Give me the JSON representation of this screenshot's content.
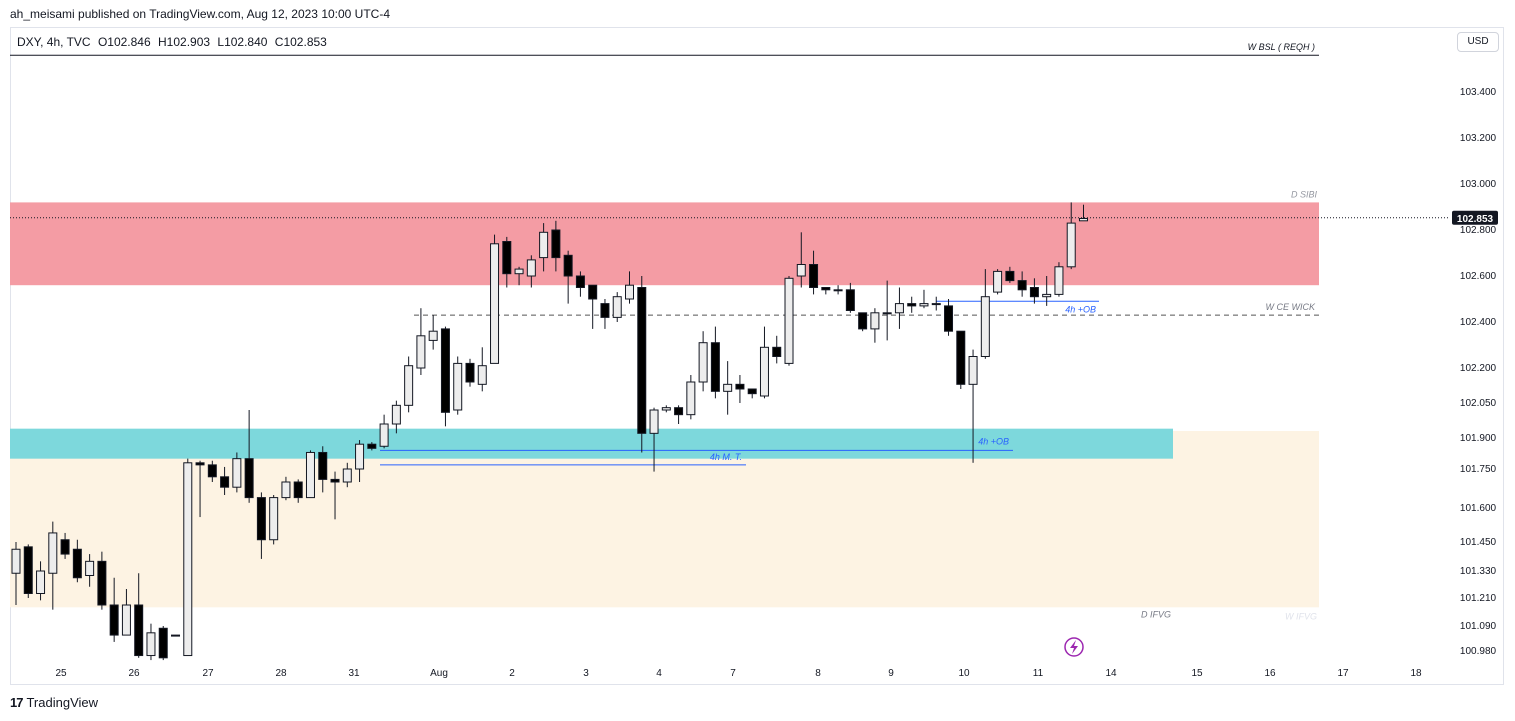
{
  "header": {
    "publisher_line": "ah_meisami published on TradingView.com, Aug 12, 2023 10:00 UTC-4"
  },
  "symbol": {
    "name": "DXY, 4h, TVC",
    "open": "O102.846",
    "high": "H102.903",
    "low": "L102.840",
    "close": "C102.853"
  },
  "currency_button": "USD",
  "footer": {
    "brand": "TradingView",
    "logo": "17"
  },
  "colors": {
    "premium_zone": "#f49ca4",
    "ob_zone": "#7dd8dc",
    "ifvg_zone": "#fdf3e3",
    "bull_candle": "#ededed",
    "bear_candle": "#000000",
    "last_price_tag": "#131722",
    "annotation_blue": "#2962ff",
    "accent_purple": "#9c27b0"
  },
  "chart_data": {
    "type": "candlestick",
    "price_axis": {
      "ticks": [
        103.4,
        103.2,
        103.0,
        102.8,
        102.6,
        102.4,
        102.2,
        102.05,
        101.9,
        101.75,
        101.6,
        101.45,
        101.33,
        101.21,
        101.09,
        100.98
      ],
      "labels": [
        "103.400",
        "103.200",
        "103.000",
        "102.800",
        "102.600",
        "102.400",
        "102.200",
        "102.050",
        "101.900",
        "101.750",
        "101.600",
        "101.450",
        "101.330",
        "101.210",
        "101.090",
        "100.980"
      ],
      "last_price": 102.853,
      "last_price_label": "102.853"
    },
    "time_axis": {
      "labels": [
        "25",
        "26",
        "27",
        "28",
        "31",
        "Aug",
        "2",
        "3",
        "4",
        "7",
        "8",
        "9",
        "10",
        "11",
        "14",
        "15",
        "16",
        "17",
        "18"
      ]
    },
    "zones": [
      {
        "label": "D SIBI",
        "low": 102.56,
        "high": 102.92
      },
      {
        "label": "D IFVG",
        "low": 101.17,
        "high": 101.93
      },
      {
        "label": "W IFVG",
        "low": 101.17,
        "high": 101.93
      },
      {
        "label": "4h +OB",
        "low": 101.8,
        "high": 101.94
      }
    ],
    "levels": [
      {
        "label": "W BSL ( REQH )",
        "price": 103.56,
        "style": "solid"
      },
      {
        "label": "W CE WICK",
        "price": 102.43,
        "style": "dashed"
      },
      {
        "label": "4h +OB",
        "price": 102.49,
        "style": "solid"
      },
      {
        "label": "4h M. T.",
        "price": 101.77,
        "style": "solid"
      },
      {
        "label": "4h +OB",
        "price": 101.84,
        "style": "solid"
      }
    ],
    "candles": [
      [
        101.32,
        101.42,
        101.18,
        101.45
      ],
      [
        101.43,
        101.23,
        101.21,
        101.44
      ],
      [
        101.23,
        101.33,
        101.2,
        101.37
      ],
      [
        101.32,
        101.49,
        101.16,
        101.54
      ],
      [
        101.46,
        101.4,
        101.38,
        101.49
      ],
      [
        101.42,
        101.3,
        101.28,
        101.46
      ],
      [
        101.31,
        101.37,
        101.26,
        101.4
      ],
      [
        101.37,
        101.18,
        101.16,
        101.41
      ],
      [
        101.18,
        101.05,
        101.02,
        101.3
      ],
      [
        101.05,
        101.18,
        101.05,
        101.25
      ],
      [
        101.18,
        100.96,
        100.95,
        101.32
      ],
      [
        100.96,
        101.06,
        100.94,
        101.1
      ],
      [
        101.08,
        100.95,
        100.94,
        101.09
      ],
      [
        101.05,
        101.05,
        101.05,
        101.05
      ],
      [
        100.96,
        101.78,
        100.96,
        101.8
      ],
      [
        101.78,
        101.77,
        101.56,
        101.79
      ],
      [
        101.77,
        101.72,
        101.7,
        101.79
      ],
      [
        101.72,
        101.68,
        101.65,
        101.76
      ],
      [
        101.68,
        101.8,
        101.66,
        101.83
      ],
      [
        101.8,
        101.64,
        101.62,
        102.02
      ],
      [
        101.64,
        101.46,
        101.38,
        101.66
      ],
      [
        101.46,
        101.64,
        101.44,
        101.65
      ],
      [
        101.64,
        101.7,
        101.63,
        101.72
      ],
      [
        101.7,
        101.64,
        101.62,
        101.71
      ],
      [
        101.64,
        101.83,
        101.64,
        101.84
      ],
      [
        101.83,
        101.71,
        101.66,
        101.86
      ],
      [
        101.71,
        101.7,
        101.55,
        101.74
      ],
      [
        101.7,
        101.75,
        101.68,
        101.78
      ],
      [
        101.75,
        101.87,
        101.7,
        101.89
      ],
      [
        101.87,
        101.85,
        101.84,
        101.88
      ],
      [
        101.86,
        101.96,
        101.85,
        102.0
      ],
      [
        101.96,
        102.04,
        101.92,
        102.06
      ],
      [
        102.04,
        102.21,
        102.01,
        102.25
      ],
      [
        102.2,
        102.34,
        102.17,
        102.46
      ],
      [
        102.32,
        102.36,
        102.28,
        102.43
      ],
      [
        102.37,
        102.01,
        101.95,
        102.38
      ],
      [
        102.02,
        102.22,
        102.0,
        102.25
      ],
      [
        102.22,
        102.14,
        102.12,
        102.24
      ],
      [
        102.13,
        102.21,
        102.1,
        102.29
      ],
      [
        102.22,
        102.74,
        102.22,
        102.78
      ],
      [
        102.75,
        102.61,
        102.55,
        102.77
      ],
      [
        102.61,
        102.63,
        102.56,
        102.64
      ],
      [
        102.6,
        102.67,
        102.55,
        102.69
      ],
      [
        102.68,
        102.79,
        102.62,
        102.83
      ],
      [
        102.8,
        102.68,
        102.62,
        102.84
      ],
      [
        102.69,
        102.6,
        102.48,
        102.71
      ],
      [
        102.6,
        102.55,
        102.51,
        102.62
      ],
      [
        102.56,
        102.5,
        102.37,
        102.56
      ],
      [
        102.48,
        102.42,
        102.37,
        102.5
      ],
      [
        102.42,
        102.51,
        102.4,
        102.53
      ],
      [
        102.5,
        102.56,
        102.48,
        102.62
      ],
      [
        102.55,
        101.92,
        101.83,
        102.6
      ],
      [
        101.92,
        102.02,
        101.74,
        102.03
      ],
      [
        102.02,
        102.03,
        102.01,
        102.04
      ],
      [
        102.03,
        102.0,
        101.96,
        102.04
      ],
      [
        102.0,
        102.14,
        101.98,
        102.17
      ],
      [
        102.14,
        102.31,
        102.1,
        102.36
      ],
      [
        102.31,
        102.1,
        102.07,
        102.38
      ],
      [
        102.1,
        102.13,
        102.0,
        102.23
      ],
      [
        102.13,
        102.11,
        102.05,
        102.17
      ],
      [
        102.11,
        102.09,
        102.07,
        102.11
      ],
      [
        102.08,
        102.29,
        102.07,
        102.38
      ],
      [
        102.29,
        102.25,
        102.22,
        102.34
      ],
      [
        102.22,
        102.59,
        102.21,
        102.6
      ],
      [
        102.6,
        102.65,
        102.55,
        102.79
      ],
      [
        102.65,
        102.55,
        102.52,
        102.71
      ],
      [
        102.55,
        102.54,
        102.52,
        102.55
      ],
      [
        102.54,
        102.54,
        102.52,
        102.56
      ],
      [
        102.54,
        102.45,
        102.44,
        102.57
      ],
      [
        102.44,
        102.37,
        102.36,
        102.44
      ],
      [
        102.37,
        102.44,
        102.31,
        102.46
      ],
      [
        102.44,
        102.44,
        102.32,
        102.58
      ],
      [
        102.44,
        102.48,
        102.37,
        102.55
      ],
      [
        102.48,
        102.47,
        102.44,
        102.51
      ],
      [
        102.47,
        102.48,
        102.46,
        102.54
      ],
      [
        102.48,
        102.48,
        102.45,
        102.51
      ],
      [
        102.47,
        102.36,
        102.34,
        102.5
      ],
      [
        102.36,
        102.13,
        102.11,
        102.36
      ],
      [
        102.13,
        102.25,
        101.78,
        102.28
      ],
      [
        102.25,
        102.51,
        102.24,
        102.63
      ],
      [
        102.53,
        102.62,
        102.52,
        102.63
      ],
      [
        102.62,
        102.58,
        102.57,
        102.64
      ],
      [
        102.58,
        102.54,
        102.51,
        102.62
      ],
      [
        102.55,
        102.51,
        102.48,
        102.59
      ],
      [
        102.51,
        102.52,
        102.47,
        102.6
      ],
      [
        102.52,
        102.64,
        102.51,
        102.66
      ],
      [
        102.64,
        102.83,
        102.63,
        102.92
      ],
      [
        102.84,
        102.85,
        102.84,
        102.91
      ]
    ]
  }
}
